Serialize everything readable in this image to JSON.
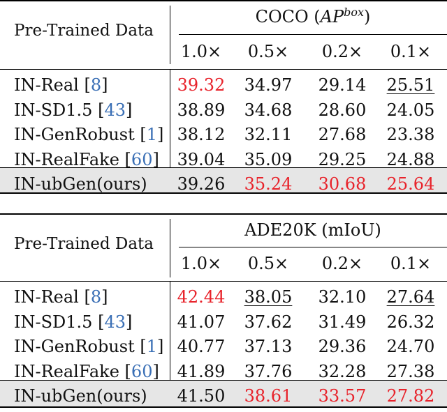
{
  "tables": [
    {
      "id": "coco",
      "header_label": "Pre-Trained Data",
      "title_prefix": "COCO (",
      "title_metric": "AP",
      "title_sup": "box",
      "title_suffix": ")",
      "columns": [
        "1.0×",
        "0.5×",
        "0.2×",
        "0.1×"
      ],
      "rows": [
        {
          "name": "IN-Real [",
          "ref": "8",
          "close": "]",
          "values": [
            "39.32",
            "34.97",
            "29.14",
            "25.51"
          ],
          "styles": [
            "red",
            "",
            "",
            "ul"
          ],
          "shaded": false
        },
        {
          "name": "IN-SD1.5 [",
          "ref": "43",
          "close": "]",
          "values": [
            "38.89",
            "34.68",
            "28.60",
            "24.05"
          ],
          "styles": [
            "",
            "",
            "",
            ""
          ],
          "shaded": false
        },
        {
          "name": "IN-GenRobust [",
          "ref": "1",
          "close": "]",
          "values": [
            "38.12",
            "32.11",
            "27.68",
            "23.38"
          ],
          "styles": [
            "",
            "",
            "",
            ""
          ],
          "shaded": false
        },
        {
          "name": "IN-RealFake [",
          "ref": "60",
          "close": "]",
          "values": [
            "39.04",
            "35.09",
            "29.25",
            "24.88"
          ],
          "styles": [
            "",
            "ul",
            "ul",
            ""
          ],
          "shaded": false
        },
        {
          "name": "IN-ubGen(ours)",
          "ref": "",
          "close": "",
          "values": [
            "39.26",
            "35.24",
            "30.68",
            "25.64"
          ],
          "styles": [
            "ul",
            "red",
            "red",
            "red"
          ],
          "shaded": true
        }
      ]
    },
    {
      "id": "ade",
      "header_label": "Pre-Trained Data",
      "title_text": "ADE20K (mIoU)",
      "columns": [
        "1.0×",
        "0.5×",
        "0.2×",
        "0.1×"
      ],
      "rows": [
        {
          "name": "IN-Real [",
          "ref": "8",
          "close": "]",
          "values": [
            "42.44",
            "38.05",
            "32.10",
            "27.64"
          ],
          "styles": [
            "red",
            "ul",
            "",
            "ul"
          ],
          "shaded": false
        },
        {
          "name": "IN-SD1.5 [",
          "ref": "43",
          "close": "]",
          "values": [
            "41.07",
            "37.62",
            "31.49",
            "26.32"
          ],
          "styles": [
            "",
            "",
            "",
            ""
          ],
          "shaded": false
        },
        {
          "name": "IN-GenRobust [",
          "ref": "1",
          "close": "]",
          "values": [
            "40.77",
            "37.13",
            "29.36",
            "24.70"
          ],
          "styles": [
            "",
            "",
            "",
            ""
          ],
          "shaded": false
        },
        {
          "name": "IN-RealFake [",
          "ref": "60",
          "close": "]",
          "values": [
            "41.89",
            "37.76",
            "32.28",
            "27.38"
          ],
          "styles": [
            "ul",
            "",
            "ul",
            ""
          ],
          "shaded": false
        },
        {
          "name": "IN-ubGen(ours)",
          "ref": "",
          "close": "",
          "values": [
            "41.50",
            "38.61",
            "33.57",
            "27.82"
          ],
          "styles": [
            "",
            "red",
            "red",
            "red"
          ],
          "shaded": true
        }
      ]
    }
  ]
}
